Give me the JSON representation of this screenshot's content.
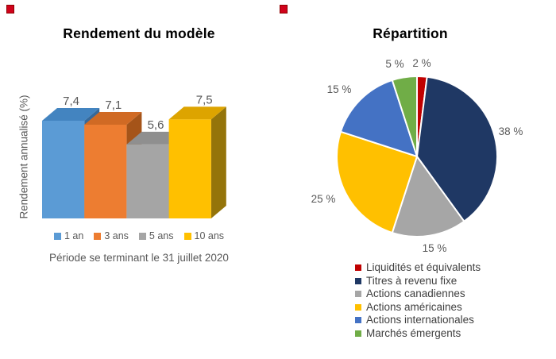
{
  "page": {
    "background": "#ffffff",
    "marker_color": "#d0021b"
  },
  "chart_data": [
    {
      "type": "bar",
      "style": "3d",
      "title": "Rendement du modèle",
      "ylabel": "Rendement annualisé (%)",
      "xlabel": "",
      "caption": "Période se terminant le 31 juillet 2020",
      "categories": [
        "1 an",
        "3 ans",
        "5 ans",
        "10 ans"
      ],
      "values": [
        7.4,
        7.1,
        5.6,
        7.5
      ],
      "value_labels": [
        "7,4",
        "7,1",
        "5,6",
        "7,5"
      ],
      "colors": [
        "#5b9bd5",
        "#ed7d31",
        "#a5a5a5",
        "#ffc000"
      ],
      "top_shades": [
        "#4384c0",
        "#d06a24",
        "#8f8f8f",
        "#dda400"
      ],
      "side_shades": [
        "#36699b",
        "#a55419",
        "#767676",
        "#94740a"
      ],
      "label_color": "#595959",
      "ylim": [
        0,
        8
      ],
      "grid": false,
      "legend_position": "bottom"
    },
    {
      "type": "pie",
      "title": "Répartition",
      "labels": [
        "Liquidités et équivalents",
        "Titres à revenu fixe",
        "Actions canadiennes",
        "Actions américaines",
        "Actions internationales",
        "Marchés émergents"
      ],
      "values": [
        2,
        38,
        15,
        25,
        15,
        5
      ],
      "value_labels": [
        "2 %",
        "38 %",
        "15 %",
        "25 %",
        "15 %",
        "5 %"
      ],
      "colors": [
        "#c00000",
        "#1f3864",
        "#a6a6a6",
        "#ffc000",
        "#4472c4",
        "#70ad47"
      ],
      "start_angle": 0,
      "direction": "clockwise",
      "slice_border_color": "#ffffff",
      "label_color": "#595959",
      "legend_position": "bottom"
    }
  ]
}
